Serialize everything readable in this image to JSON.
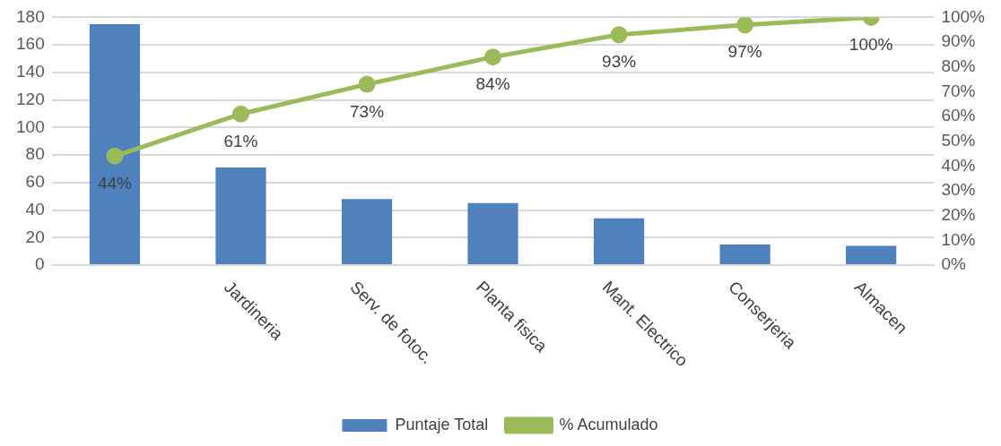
{
  "chart_data": {
    "type": "bar",
    "categories": [
      null,
      "Jardineria",
      "Serv. de fotoc.",
      "Planta fisica",
      "Mant. Electrico",
      "Conserjeria",
      "Almacen"
    ],
    "series": [
      {
        "name": "Puntaje Total",
        "color": "#4f81bd",
        "values": [
          175,
          71,
          48,
          45,
          34,
          15,
          14
        ]
      },
      {
        "name": "% Acumulado",
        "type": "line",
        "axis": "y2",
        "color": "#9bbb59",
        "marker": "circle",
        "values": [
          44,
          61,
          73,
          84,
          93,
          97,
          100
        ],
        "value_labels": [
          "44%",
          "61%",
          "73%",
          "84%",
          "93%",
          "97%",
          "100%"
        ]
      }
    ],
    "ylim": [
      0,
      180
    ],
    "yticks": [
      0,
      20,
      40,
      60,
      80,
      100,
      120,
      140,
      160,
      180
    ],
    "y2lim": [
      0,
      100
    ],
    "y2ticks": [
      {
        "value": 0,
        "label": "0%"
      },
      {
        "value": 10,
        "label": "10%"
      },
      {
        "value": 20,
        "label": "20%"
      },
      {
        "value": 30,
        "label": "30%"
      },
      {
        "value": 40,
        "label": "40%"
      },
      {
        "value": 50,
        "label": "50%"
      },
      {
        "value": 60,
        "label": "60%"
      },
      {
        "value": 70,
        "label": "70%"
      },
      {
        "value": 80,
        "label": "80%"
      },
      {
        "value": 90,
        "label": "90%"
      },
      {
        "value": 100,
        "label": "100%"
      }
    ],
    "grid": "y",
    "legend": "bottom"
  }
}
